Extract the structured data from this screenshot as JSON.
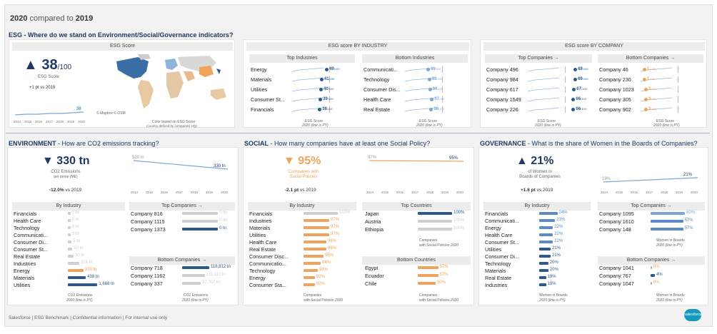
{
  "header": {
    "year": "2020",
    "compared": "compared to",
    "base": "2019"
  },
  "esg": {
    "section_title": "ESG - Where do we stand on Environment/Social/Governance indicators?",
    "score_panel_title": "ESG Score",
    "score_value": "38",
    "score_suffix": "/100",
    "score_label": "ESG Score",
    "score_delta": "+1 pt",
    "score_delta_vs": "vs 2019",
    "spark_years": [
      "2014",
      "2015",
      "2016",
      "2017",
      "2018",
      "2019",
      "2020"
    ],
    "spark_end": "38",
    "map_copyright": "© Mapbox © OSM",
    "map_note1": "Color based on ESG Score",
    "map_note2": "(country defined by companies HQ)",
    "industry_panel_title": "ESG score BY INDUSTRY",
    "top_industries_title": "Top Industries",
    "bottom_industries_title": "Bottom Industries",
    "top_industries": [
      {
        "name": "Energy",
        "value": 49
      },
      {
        "name": "Materials",
        "value": 41
      },
      {
        "name": "Utilities",
        "value": 40
      },
      {
        "name": "Consumer St...",
        "value": 39
      },
      {
        "name": "Financials",
        "value": 38
      }
    ],
    "bottom_industries": [
      {
        "name": "Communicati...",
        "value": 31
      },
      {
        "name": "Technology",
        "value": 33
      },
      {
        "name": "Consumer Dis...",
        "value": 34
      },
      {
        "name": "Health Care",
        "value": 37
      },
      {
        "name": "Real Estate",
        "value": 36
      }
    ],
    "company_panel_title": "ESG score BY COMPANY",
    "top_companies_title": "Top Companies →",
    "bottom_companies_title": "Bottom Companies →",
    "top_companies": [
      {
        "name": "Company 496",
        "value": 69
      },
      {
        "name": "Company 984",
        "value": 69
      },
      {
        "name": "Company 617",
        "value": 67
      },
      {
        "name": "Company 1549",
        "value": 66
      },
      {
        "name": "Company 226",
        "value": 66
      }
    ],
    "bottom_companies": [
      {
        "name": "Company 46",
        "value": 1
      },
      {
        "name": "Company 230",
        "value": 1
      },
      {
        "name": "Company 1023",
        "value": 3
      },
      {
        "name": "Company 305",
        "value": 3
      },
      {
        "name": "Company 902",
        "value": 3
      }
    ],
    "suffix": "/100",
    "axis_label": "ESG Score",
    "axis_sub": "2020  (line is PY)"
  },
  "environment": {
    "section_title": "ENVIRONMENT",
    "section_question": " - How are CO2 emissions tracking?",
    "kpi_value": "330 tn",
    "kpi_label1": "CO2 Emissions",
    "kpi_label2": "per tonne (ME)",
    "kpi_delta": "-12.0%",
    "kpi_vs": "vs 2019",
    "line_start": "520 tn",
    "line_end": "330 tn",
    "years": [
      "2014",
      "2015",
      "2016",
      "2017",
      "2018",
      "2019",
      "2020"
    ],
    "by_industry_title": "By Industry",
    "industries": [
      {
        "name": "Financials",
        "value": "0 tn",
        "w": 4
      },
      {
        "name": "Health Care",
        "value": "0 tn",
        "w": 4
      },
      {
        "name": "Technology",
        "value": "0 tn",
        "w": 4
      },
      {
        "name": "Communicati...",
        "value": "0 tn",
        "w": 4
      },
      {
        "name": "Consumer Di...",
        "value": "5 tn",
        "w": 6
      },
      {
        "name": "Consumer St...",
        "value": "10 tn",
        "w": 7
      },
      {
        "name": "Real Estate",
        "value": "30 tn",
        "w": 9
      },
      {
        "name": "Industries",
        "value": "201 tn",
        "w": 18
      },
      {
        "name": "Energy",
        "value": "378 tn",
        "w": 24
      },
      {
        "name": "Materials",
        "value": "438 tn",
        "w": 28
      },
      {
        "name": "Utilities",
        "value": "1,668 tn",
        "w": 46
      }
    ],
    "axis_label": "CO2 Emissions",
    "axis_sub": "2020  (line is PY)",
    "top_companies_title": "Top Companies →",
    "top_companies": [
      {
        "name": "Company 816",
        "value": "0 tn"
      },
      {
        "name": "Company 1115",
        "value": "0 tn"
      },
      {
        "name": "Company 1373",
        "value": "0 tn"
      }
    ],
    "bottom_companies_title": "Bottom Companies →",
    "bottom_companies": [
      {
        "name": "Company 718",
        "value": "118,812 tn"
      },
      {
        "name": "Company 1162",
        "value": "111,111 tn"
      },
      {
        "name": "Company 337",
        "value": "97,707 tn"
      }
    ]
  },
  "social": {
    "section_title": "SOCIAL",
    "section_question": " - How many companies have at least one Social Policy?",
    "kpi_value": "95%",
    "kpi_label1": "Companies with",
    "kpi_label2": "Social Policies",
    "kpi_delta": "-2.1 pt",
    "kpi_vs": "vs 2019",
    "line_start": "97%",
    "line_end": "95%",
    "years": [
      "2014",
      "2015",
      "2016",
      "2017",
      "2018",
      "2019",
      "2020"
    ],
    "by_industry_title": "By Industry",
    "industries": [
      {
        "name": "Financials",
        "value": "100%"
      },
      {
        "name": "Industries",
        "value": "97%"
      },
      {
        "name": "Materials",
        "value": "97%"
      },
      {
        "name": "Utilities",
        "value": "97%"
      },
      {
        "name": "Health Care",
        "value": "96%"
      },
      {
        "name": "Real Estate",
        "value": "96%"
      },
      {
        "name": "Consumer Disc...",
        "value": "95%"
      },
      {
        "name": "Communicatio...",
        "value": "94%"
      },
      {
        "name": "Technology",
        "value": "93%"
      },
      {
        "name": "Energy",
        "value": "92%"
      },
      {
        "name": "Consumer Sta...",
        "value": "92%"
      }
    ],
    "axis_label": "Companies",
    "axis_label2": "with Social Policies",
    "axis_sub": "2020",
    "top_countries_title": "Top Countries",
    "top_countries": [
      {
        "name": "Japan",
        "value": "100%"
      },
      {
        "name": "Austria",
        "value": "100%"
      },
      {
        "name": "Ethiopia",
        "value": "100%"
      }
    ],
    "bottom_countries_title": "Bottom Countries",
    "bottom_countries": [
      {
        "name": "Egypt",
        "value": "57%"
      },
      {
        "name": "Ecuador",
        "value": "57%"
      },
      {
        "name": "Chile",
        "value": "50%"
      }
    ]
  },
  "governance": {
    "section_title": "GOVERNANCE",
    "section_question": " - What is the share of Women in the Boards of Companies?",
    "kpi_value": "21%",
    "kpi_label1": "of Women in",
    "kpi_label2": "Boards of Companies",
    "kpi_delta": "+1.6 pt",
    "kpi_vs": "vs 2019",
    "line_start": "19%",
    "line_end": "21%",
    "years": [
      "2014",
      "2015",
      "2016",
      "2017",
      "2018",
      "2019",
      "2020"
    ],
    "by_industry_title": "By Industry",
    "industries": [
      {
        "name": "Financials",
        "value": "24%"
      },
      {
        "name": "Communicati...",
        "value": "23%"
      },
      {
        "name": "Energy",
        "value": "22%"
      },
      {
        "name": "Health Care",
        "value": "22%"
      },
      {
        "name": "Consumer St...",
        "value": "22%"
      },
      {
        "name": "Utilities",
        "value": "21%"
      },
      {
        "name": "Consumer Di...",
        "value": "21%"
      },
      {
        "name": "Technology",
        "value": "20%"
      },
      {
        "name": "Materials",
        "value": "20%"
      },
      {
        "name": "Real Estate",
        "value": "19%"
      },
      {
        "name": "Industries",
        "value": "19%"
      }
    ],
    "axis_label": "Women in Boards",
    "axis_sub": "2020  (line is PY)",
    "top_companies_title": "Top Companies →",
    "top_companies": [
      {
        "name": "Company 1095",
        "value": "60%"
      },
      {
        "name": "Company 1610",
        "value": "57%"
      },
      {
        "name": "Company 148",
        "value": "57%"
      }
    ],
    "bottom_companies_title": "Bottom Companies →",
    "bottom_companies": [
      {
        "name": "Company 1041",
        "value": "0%"
      },
      {
        "name": "Company 767",
        "value": "4%"
      },
      {
        "name": "Company 1047",
        "value": "0%"
      }
    ]
  },
  "footer": {
    "text": "Salesforce | ESG Benchmark | Confidential information | For internal use only",
    "logo": "salesforce"
  },
  "colors": {
    "navy": "#2d5a8e",
    "orange": "#f0a35a",
    "lightblue": "#7ea6d3",
    "grey": "#cfcfcf"
  }
}
